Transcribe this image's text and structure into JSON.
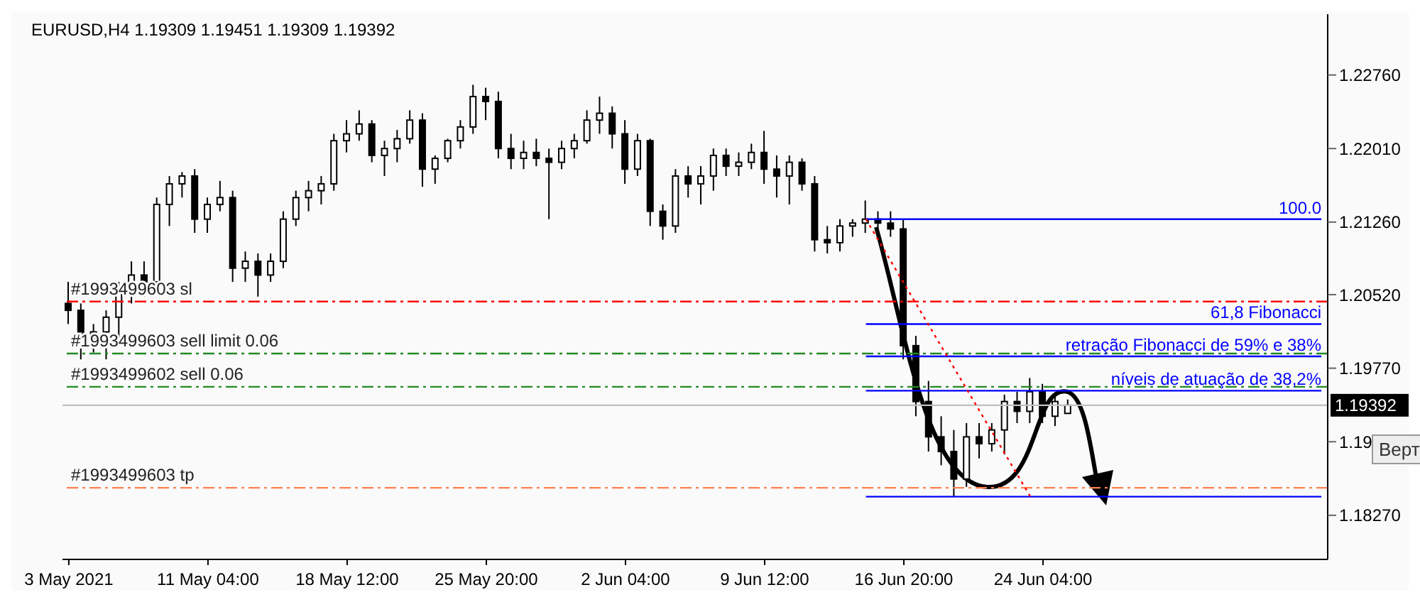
{
  "chart_data": {
    "type": "candlestick",
    "title": "EURUSD,H4  1.19309 1.19451 1.19309 1.19392",
    "categories": [
      "3 May 2021",
      null,
      null,
      null,
      null,
      null,
      null,
      null,
      null,
      null,
      null,
      "11 May 04:00",
      null,
      null,
      null,
      null,
      null,
      null,
      null,
      null,
      null,
      null,
      "18 May 12:00",
      null,
      null,
      null,
      null,
      null,
      null,
      null,
      null,
      null,
      null,
      "25 May 20:00",
      null,
      null,
      null,
      null,
      null,
      null,
      null,
      null,
      null,
      null,
      "2 Jun 04:00",
      null,
      null,
      null,
      null,
      null,
      null,
      null,
      null,
      null,
      null,
      "9 Jun 12:00",
      null,
      null,
      null,
      null,
      null,
      null,
      null,
      null,
      null,
      null,
      "16 Jun 20:00",
      null,
      null,
      null,
      null,
      null,
      null,
      null,
      null,
      null,
      null,
      "24 Jun 04:00",
      null,
      null,
      null,
      null,
      null,
      null,
      null,
      null,
      null,
      null,
      null,
      null,
      null,
      null,
      null,
      null,
      null,
      null,
      null,
      null,
      null,
      null
    ],
    "ohlc": [
      [
        1.2043,
        1.2065,
        1.2022,
        1.2036
      ],
      [
        1.2036,
        1.2043,
        1.1986,
        1.2007
      ],
      [
        1.2007,
        1.2022,
        1.1993,
        1.2014
      ],
      [
        1.2014,
        1.2036,
        1.1986,
        1.2029
      ],
      [
        1.2029,
        1.2065,
        1.2007,
        1.2058
      ],
      [
        1.2058,
        1.2086,
        1.2043,
        1.2072
      ],
      [
        1.2072,
        1.2086,
        1.205,
        1.2065
      ],
      [
        1.2065,
        1.2151,
        1.2058,
        1.2144
      ],
      [
        1.2144,
        1.2173,
        1.2122,
        1.2165
      ],
      [
        1.2165,
        1.2177,
        1.2151,
        1.2173
      ],
      [
        1.2173,
        1.218,
        1.2115,
        1.2129
      ],
      [
        1.2129,
        1.2151,
        1.2115,
        1.2144
      ],
      [
        1.2144,
        1.2168,
        1.2137,
        1.2151
      ],
      [
        1.2151,
        1.2158,
        1.2065,
        1.2079
      ],
      [
        1.2079,
        1.2096,
        1.2065,
        1.2086
      ],
      [
        1.2086,
        1.2094,
        1.205,
        1.2072
      ],
      [
        1.2072,
        1.2094,
        1.2065,
        1.2086
      ],
      [
        1.2086,
        1.2137,
        1.2079,
        1.2129
      ],
      [
        1.2129,
        1.2158,
        1.2122,
        1.2151
      ],
      [
        1.2151,
        1.2168,
        1.2137,
        1.2158
      ],
      [
        1.2158,
        1.2173,
        1.2144,
        1.2165
      ],
      [
        1.2165,
        1.2216,
        1.2158,
        1.2209
      ],
      [
        1.2209,
        1.223,
        1.2197,
        1.2216
      ],
      [
        1.2216,
        1.224,
        1.2209,
        1.2226
      ],
      [
        1.2226,
        1.223,
        1.2187,
        1.2194
      ],
      [
        1.2194,
        1.2209,
        1.2173,
        1.2201
      ],
      [
        1.2201,
        1.222,
        1.2187,
        1.2211
      ],
      [
        1.2211,
        1.224,
        1.2206,
        1.223
      ],
      [
        1.223,
        1.2237,
        1.2162,
        1.218
      ],
      [
        1.218,
        1.2194,
        1.2165,
        1.2191
      ],
      [
        1.2191,
        1.2211,
        1.2187,
        1.2209
      ],
      [
        1.2209,
        1.223,
        1.2201,
        1.2223
      ],
      [
        1.2223,
        1.2266,
        1.2216,
        1.2254
      ],
      [
        1.2254,
        1.2263,
        1.223,
        1.2249
      ],
      [
        1.2249,
        1.2259,
        1.2191,
        1.2201
      ],
      [
        1.2201,
        1.2216,
        1.218,
        1.2191
      ],
      [
        1.2191,
        1.2209,
        1.218,
        1.2197
      ],
      [
        1.2197,
        1.2211,
        1.2183,
        1.2191
      ],
      [
        1.2191,
        1.2201,
        1.2129,
        1.2187
      ],
      [
        1.2187,
        1.2209,
        1.218,
        1.2201
      ],
      [
        1.2201,
        1.2216,
        1.2191,
        1.2209
      ],
      [
        1.2209,
        1.224,
        1.2206,
        1.223
      ],
      [
        1.223,
        1.2254,
        1.2216,
        1.2237
      ],
      [
        1.2237,
        1.2244,
        1.2201,
        1.2216
      ],
      [
        1.2216,
        1.223,
        1.2165,
        1.218
      ],
      [
        1.218,
        1.2216,
        1.2173,
        1.2209
      ],
      [
        1.2209,
        1.2211,
        1.2122,
        1.2137
      ],
      [
        1.2137,
        1.2144,
        1.2108,
        1.2122
      ],
      [
        1.2122,
        1.218,
        1.2115,
        1.2173
      ],
      [
        1.2173,
        1.2183,
        1.2151,
        1.2165
      ],
      [
        1.2165,
        1.2183,
        1.2144,
        1.2173
      ],
      [
        1.2173,
        1.2201,
        1.2158,
        1.2194
      ],
      [
        1.2194,
        1.2201,
        1.2173,
        1.2183
      ],
      [
        1.2183,
        1.2197,
        1.2173,
        1.2187
      ],
      [
        1.2187,
        1.2206,
        1.218,
        1.2197
      ],
      [
        1.2197,
        1.2219,
        1.2165,
        1.218
      ],
      [
        1.218,
        1.2194,
        1.2151,
        1.2173
      ],
      [
        1.2173,
        1.2194,
        1.2144,
        1.2187
      ],
      [
        1.2187,
        1.2191,
        1.2158,
        1.2165
      ],
      [
        1.2165,
        1.2173,
        1.2096,
        1.2108
      ],
      [
        1.2108,
        1.2122,
        1.2094,
        1.2105
      ],
      [
        1.2105,
        1.2129,
        1.2096,
        1.2122
      ],
      [
        1.2122,
        1.2129,
        1.2111,
        1.2125
      ],
      [
        1.2125,
        1.2148,
        1.2115,
        1.2129
      ],
      [
        1.2129,
        1.2137,
        1.2108,
        1.2125
      ],
      [
        1.2125,
        1.2137,
        1.2111,
        1.2119
      ],
      [
        1.2119,
        1.2129,
        1.1986,
        1.2
      ],
      [
        1.2,
        1.201,
        1.1928,
        1.1943
      ],
      [
        1.1943,
        1.1964,
        1.1892,
        1.1907
      ],
      [
        1.1907,
        1.1928,
        1.1878,
        1.1892
      ],
      [
        1.1892,
        1.1914,
        1.1846,
        1.1864
      ],
      [
        1.1864,
        1.1921,
        1.1856,
        1.1907
      ],
      [
        1.1907,
        1.1921,
        1.1885,
        1.19
      ],
      [
        1.19,
        1.1921,
        1.1892,
        1.1914
      ],
      [
        1.1914,
        1.195,
        1.1889,
        1.1943
      ],
      [
        1.1943,
        1.1953,
        1.1921,
        1.1933
      ],
      [
        1.1933,
        1.1967,
        1.1921,
        1.1953
      ],
      [
        1.1953,
        1.1961,
        1.1921,
        1.1928
      ],
      [
        1.1928,
        1.195,
        1.1918,
        1.1943
      ],
      [
        1.19309,
        1.19451,
        1.19309,
        1.19392
      ],
      null,
      null,
      null,
      null,
      null,
      null,
      null,
      null,
      null,
      null,
      null,
      null,
      null,
      null,
      null,
      null,
      null,
      null,
      null,
      null
    ],
    "series": [
      {
        "type": "line",
        "name": "100.0",
        "color": "#0000ff",
        "values": [
          null,
          null,
          null,
          null,
          null,
          null,
          null,
          null,
          null,
          null,
          null,
          null,
          null,
          null,
          null,
          null,
          null,
          null,
          null,
          null,
          null,
          null,
          null,
          null,
          null,
          null,
          null,
          null,
          null,
          null,
          null,
          null,
          null,
          null,
          null,
          null,
          null,
          null,
          null,
          null,
          null,
          null,
          null,
          null,
          null,
          null,
          null,
          null,
          null,
          null,
          null,
          null,
          null,
          null,
          null,
          null,
          null,
          null,
          null,
          null,
          null,
          null,
          null,
          1.2129,
          1.2129,
          1.2129,
          1.2129,
          1.2129,
          1.2129,
          1.2129,
          1.2129,
          1.2129,
          1.2129,
          1.2129,
          1.2129,
          1.2129,
          1.2129,
          1.2129,
          1.2129,
          1.2129,
          1.2129,
          1.2129,
          1.2129,
          1.2129,
          1.2129,
          1.2129,
          1.2129,
          1.2129,
          1.2129,
          1.2129,
          1.2129,
          1.2129,
          1.2129,
          1.2129,
          1.2129,
          1.2129,
          1.2129,
          1.2129,
          1.2129,
          1.2129
        ]
      },
      {
        "type": "line",
        "name": "61,8 Fibonacci",
        "color": "#0000ff",
        "values": [
          null,
          null,
          null,
          null,
          null,
          null,
          null,
          null,
          null,
          null,
          null,
          null,
          null,
          null,
          null,
          null,
          null,
          null,
          null,
          null,
          null,
          null,
          null,
          null,
          null,
          null,
          null,
          null,
          null,
          null,
          null,
          null,
          null,
          null,
          null,
          null,
          null,
          null,
          null,
          null,
          null,
          null,
          null,
          null,
          null,
          null,
          null,
          null,
          null,
          null,
          null,
          null,
          null,
          null,
          null,
          null,
          null,
          null,
          null,
          null,
          null,
          null,
          null,
          1.2022,
          1.2022,
          1.2022,
          1.2022,
          1.2022,
          1.2022,
          1.2022,
          1.2022,
          1.2022,
          1.2022,
          1.2022,
          1.2022,
          1.2022,
          1.2022,
          1.2022,
          1.2022,
          1.2022,
          1.2022,
          1.2022,
          1.2022,
          1.2022,
          1.2022,
          1.2022,
          1.2022,
          1.2022,
          1.2022,
          1.2022,
          1.2022,
          1.2022,
          1.2022,
          1.2022,
          1.2022,
          1.2022,
          1.2022,
          1.2022,
          1.2022,
          1.2022
        ]
      },
      {
        "type": "line",
        "name": "retração Fibonacci de 59% e 38%",
        "color": "#0000ff",
        "values": [
          null,
          null,
          null,
          null,
          null,
          null,
          null,
          null,
          null,
          null,
          null,
          null,
          null,
          null,
          null,
          null,
          null,
          null,
          null,
          null,
          null,
          null,
          null,
          null,
          null,
          null,
          null,
          null,
          null,
          null,
          null,
          null,
          null,
          null,
          null,
          null,
          null,
          null,
          null,
          null,
          null,
          null,
          null,
          null,
          null,
          null,
          null,
          null,
          null,
          null,
          null,
          null,
          null,
          null,
          null,
          null,
          null,
          null,
          null,
          null,
          null,
          null,
          null,
          1.1989,
          1.1989,
          1.1989,
          1.1989,
          1.1989,
          1.1989,
          1.1989,
          1.1989,
          1.1989,
          1.1989,
          1.1989,
          1.1989,
          1.1989,
          1.1989,
          1.1989,
          1.1989,
          1.1989,
          1.1989,
          1.1989,
          1.1989,
          1.1989,
          1.1989,
          1.1989,
          1.1989,
          1.1989,
          1.1989,
          1.1989,
          1.1989,
          1.1989,
          1.1989,
          1.1989,
          1.1989,
          1.1989,
          1.1989,
          1.1989,
          1.1989,
          1.1989
        ]
      },
      {
        "type": "line",
        "name": "níveis de atuação de 38,2%",
        "color": "#0000ff",
        "values": [
          null,
          null,
          null,
          null,
          null,
          null,
          null,
          null,
          null,
          null,
          null,
          null,
          null,
          null,
          null,
          null,
          null,
          null,
          null,
          null,
          null,
          null,
          null,
          null,
          null,
          null,
          null,
          null,
          null,
          null,
          null,
          null,
          null,
          null,
          null,
          null,
          null,
          null,
          null,
          null,
          null,
          null,
          null,
          null,
          null,
          null,
          null,
          null,
          null,
          null,
          null,
          null,
          null,
          null,
          null,
          null,
          null,
          null,
          null,
          null,
          null,
          null,
          null,
          1.1954,
          1.1954,
          1.1954,
          1.1954,
          1.1954,
          1.1954,
          1.1954,
          1.1954,
          1.1954,
          1.1954,
          1.1954,
          1.1954,
          1.1954,
          1.1954,
          1.1954,
          1.1954,
          1.1954,
          1.1954,
          1.1954,
          1.1954,
          1.1954,
          1.1954,
          1.1954,
          1.1954,
          1.1954,
          1.1954,
          1.1954,
          1.1954,
          1.1954,
          1.1954,
          1.1954,
          1.1954,
          1.1954,
          1.1954,
          1.1954,
          1.1954,
          1.1954
        ]
      },
      {
        "type": "line",
        "color": "#0000ff",
        "values": [
          null,
          null,
          null,
          null,
          null,
          null,
          null,
          null,
          null,
          null,
          null,
          null,
          null,
          null,
          null,
          null,
          null,
          null,
          null,
          null,
          null,
          null,
          null,
          null,
          null,
          null,
          null,
          null,
          null,
          null,
          null,
          null,
          null,
          null,
          null,
          null,
          null,
          null,
          null,
          null,
          null,
          null,
          null,
          null,
          null,
          null,
          null,
          null,
          null,
          null,
          null,
          null,
          null,
          null,
          null,
          null,
          null,
          null,
          null,
          null,
          null,
          null,
          null,
          1.1846,
          1.1846,
          1.1846,
          1.1846,
          1.1846,
          1.1846,
          1.1846,
          1.1846,
          1.1846,
          1.1846,
          1.1846,
          1.1846,
          1.1846,
          1.1846,
          1.1846,
          1.1846,
          1.1846,
          1.1846,
          1.1846,
          1.1846,
          1.1846,
          1.1846,
          1.1846,
          1.1846,
          1.1846,
          1.1846,
          1.1846,
          1.1846,
          1.1846,
          1.1846,
          1.1846,
          1.1846,
          1.1846,
          1.1846,
          1.1846,
          1.1846,
          1.1846
        ]
      },
      {
        "type": "line",
        "color": "#ff0000",
        "line_style": "dotted",
        "values": [
          null,
          null,
          null,
          null,
          null,
          null,
          null,
          null,
          null,
          null,
          null,
          null,
          null,
          null,
          null,
          null,
          null,
          null,
          null,
          null,
          null,
          null,
          null,
          null,
          null,
          null,
          null,
          null,
          null,
          null,
          null,
          null,
          null,
          null,
          null,
          null,
          null,
          null,
          null,
          null,
          null,
          null,
          null,
          null,
          null,
          null,
          null,
          null,
          null,
          null,
          null,
          null,
          null,
          null,
          null,
          null,
          null,
          null,
          null,
          null,
          null,
          null,
          null,
          1.2129,
          null,
          null,
          null,
          null,
          null,
          null,
          null,
          null,
          null,
          null,
          null,
          null,
          1.1846,
          null,
          null,
          null,
          null,
          null,
          null,
          null,
          null,
          null,
          null,
          null,
          null,
          null,
          null,
          null,
          null,
          null,
          null,
          null,
          null,
          null,
          null,
          null
        ]
      }
    ],
    "ylim": [
      1.1782,
      1.2338
    ],
    "yticks": [
      {
        "value": 1.2276,
        "label": "1.22760"
      },
      {
        "value": 1.2201,
        "label": "1.22010"
      },
      {
        "value": 1.2126,
        "label": "1.21260"
      },
      {
        "value": 1.2052,
        "label": "1.20520"
      },
      {
        "value": 1.1977,
        "label": "1.19770"
      },
      {
        "value": 1.1902,
        "label": "1.19"
      },
      {
        "value": 1.1827,
        "label": "1.18270"
      }
    ],
    "ref_lines": [
      {
        "axis": "y",
        "value": 1.2045,
        "label": "#1993499603 sl",
        "color": "#ff0000",
        "line_style": "dashed"
      },
      {
        "axis": "y",
        "value": 1.1992,
        "label": "#1993499603 sell limit 0.06",
        "color": "#228b22",
        "line_style": "dashed"
      },
      {
        "axis": "y",
        "value": 1.1958,
        "label": "#1993499602 sell 0.06",
        "color": "#228b22",
        "line_style": "dashed"
      },
      {
        "axis": "y",
        "value": 1.1855,
        "label": "#1993499603 tp",
        "color": "#ff7f50",
        "line_style": "dashed"
      },
      {
        "axis": "y",
        "value": 1.19392,
        "label": "1.19392",
        "color": "#c0c0c0",
        "line_style": "solid"
      }
    ],
    "annotations": [
      "Верт"
    ]
  }
}
